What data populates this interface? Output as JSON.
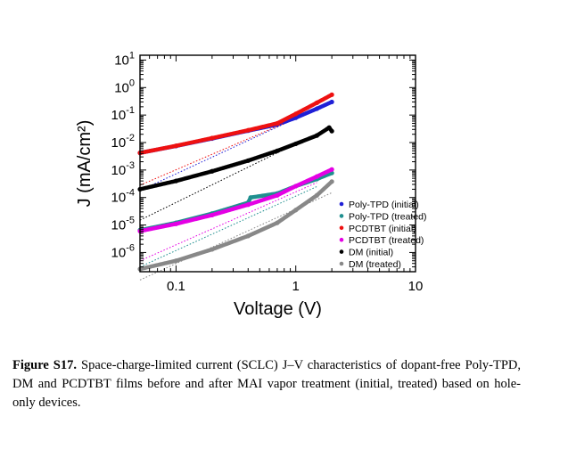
{
  "chart_data": {
    "type": "scatter",
    "x_scale": "log",
    "y_scale": "log",
    "xlabel": "Voltage (V)",
    "ylabel": "J (mA/cm²)",
    "xlim": [
      0.05,
      10
    ],
    "ylim": [
      2e-07,
      15
    ],
    "x_ticks": [
      {
        "value": 0.1,
        "label": "0.1"
      },
      {
        "value": 1,
        "label": "1"
      },
      {
        "value": 10,
        "label": "10"
      }
    ],
    "y_ticks": [
      {
        "value": 1e-06,
        "base": "10",
        "exp": "-6"
      },
      {
        "value": 1e-05,
        "base": "10",
        "exp": "-5"
      },
      {
        "value": 0.0001,
        "base": "10",
        "exp": "-4"
      },
      {
        "value": 0.001,
        "base": "10",
        "exp": "-3"
      },
      {
        "value": 0.01,
        "base": "10",
        "exp": "-2"
      },
      {
        "value": 0.1,
        "base": "10",
        "exp": "-1"
      },
      {
        "value": 1,
        "base": "10",
        "exp": "0"
      },
      {
        "value": 10,
        "base": "10",
        "exp": "1"
      }
    ],
    "legend_position": "bottom-right",
    "series": [
      {
        "name": "Poly-TPD (initial)",
        "color": "#1f1fd6",
        "x": [
          0.05,
          0.1,
          0.2,
          0.4,
          0.7,
          1.0,
          1.5,
          2.0
        ],
        "y": [
          0.0042,
          0.0075,
          0.014,
          0.027,
          0.045,
          0.08,
          0.17,
          0.3
        ],
        "fit": {
          "x": [
            0.05,
            1.0
          ],
          "y": [
            0.00018,
            0.075
          ]
        }
      },
      {
        "name": "Poly-TPD (treated)",
        "color": "#1f8f8f",
        "x": [
          0.05,
          0.1,
          0.2,
          0.4,
          0.42,
          0.7,
          1.0,
          1.5,
          2.0
        ],
        "y": [
          6.5e-06,
          1.2e-05,
          2.6e-05,
          6.5e-05,
          0.0001,
          0.00014,
          0.00026,
          0.00047,
          0.00078
        ],
        "fit": {
          "x": [
            0.05,
            1.5
          ],
          "y": [
            3e-07,
            0.00025
          ]
        }
      },
      {
        "name": "PCDTBT (initial)",
        "color": "#ee1111",
        "x": [
          0.05,
          0.1,
          0.2,
          0.4,
          0.7,
          1.0,
          1.5,
          2.0
        ],
        "y": [
          0.0042,
          0.0076,
          0.0145,
          0.028,
          0.05,
          0.11,
          0.28,
          0.55
        ],
        "fit": {
          "x": [
            0.05,
            0.8
          ],
          "y": [
            0.00028,
            0.05
          ]
        }
      },
      {
        "name": "PCDTBT (treated)",
        "color": "#e400e4",
        "x": [
          0.05,
          0.1,
          0.2,
          0.4,
          0.7,
          1.0,
          1.5,
          2.0
        ],
        "y": [
          6e-06,
          1.1e-05,
          2.3e-05,
          5.5e-05,
          0.00012,
          0.00026,
          0.00058,
          0.00105
        ],
        "fit": {
          "x": [
            0.05,
            1.5
          ],
          "y": [
            5e-07,
            0.00035
          ]
        }
      },
      {
        "name": "DM (initial)",
        "color": "#000000",
        "x": [
          0.05,
          0.1,
          0.2,
          0.4,
          0.7,
          1.0,
          1.5,
          1.9,
          2.0
        ],
        "y": [
          0.0002,
          0.0004,
          0.0009,
          0.0022,
          0.005,
          0.009,
          0.018,
          0.035,
          0.026
        ],
        "fit": {
          "x": [
            0.05,
            1.0
          ],
          "y": [
            1.5e-05,
            0.009
          ]
        }
      },
      {
        "name": "DM (treated)",
        "color": "#888888",
        "x": [
          0.05,
          0.1,
          0.2,
          0.4,
          0.7,
          1.0,
          1.5,
          2.0
        ],
        "y": [
          2.5e-07,
          5e-07,
          1.3e-06,
          4e-06,
          1.2e-05,
          3.5e-05,
          0.00012,
          0.00038
        ],
        "fit": {
          "x": [
            0.05,
            2.0
          ],
          "y": [
            1e-07,
            0.00015
          ]
        }
      }
    ]
  },
  "caption": {
    "label": "Figure S17.",
    "text": "Space-charge-limited current (SCLC) J–V characteristics of dopant-free Poly-TPD, DM and PCDTBT films before and after MAI vapor treatment (initial, treated) based on hole-only devices."
  }
}
